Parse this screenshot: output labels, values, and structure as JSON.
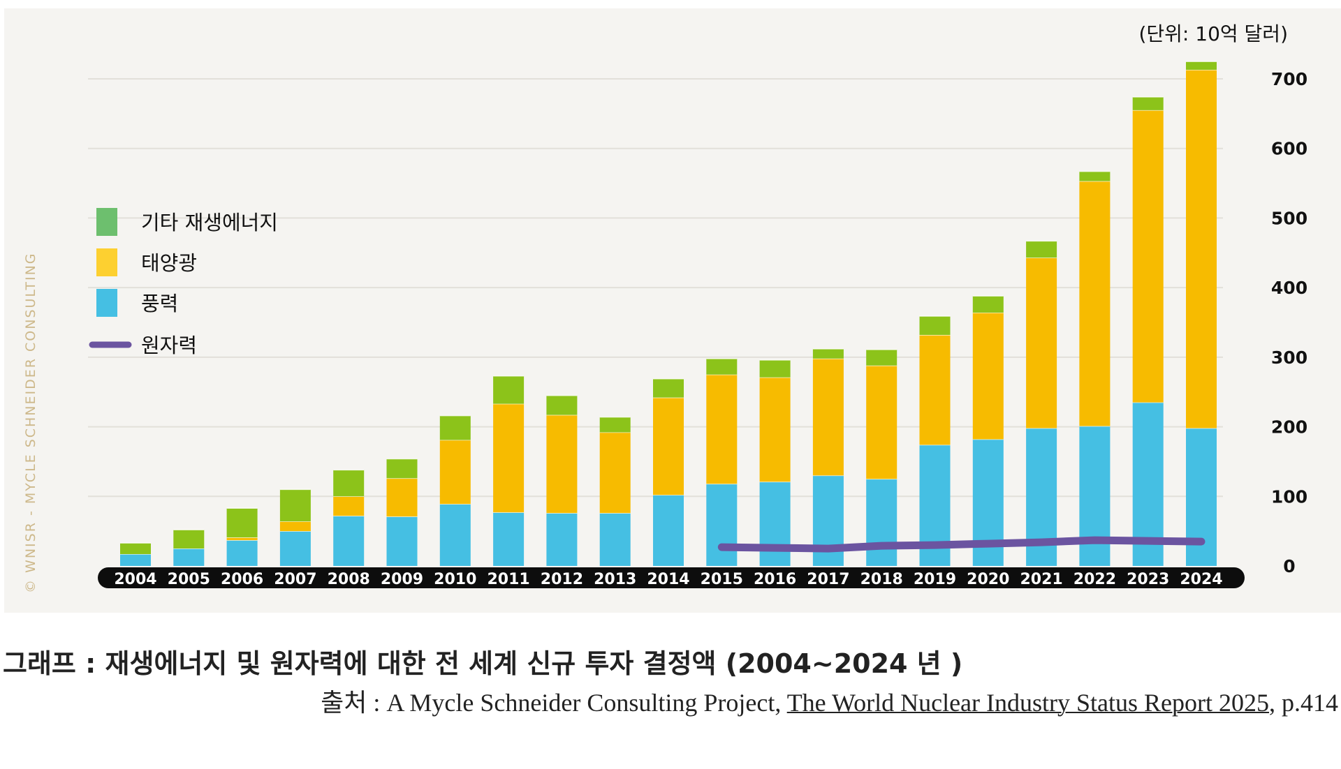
{
  "chart_data": {
    "type": "bar",
    "stacked": true,
    "unit_label": "(단위: 10억 달러)",
    "categories": [
      "2004",
      "2005",
      "2006",
      "2007",
      "2008",
      "2009",
      "2010",
      "2011",
      "2012",
      "2013",
      "2014",
      "2015",
      "2016",
      "2017",
      "2018",
      "2019",
      "2020",
      "2021",
      "2022",
      "2023",
      "2024"
    ],
    "ylim": [
      0,
      720
    ],
    "y_ticks": [
      "0",
      "100",
      "200",
      "300",
      "400",
      "500",
      "600",
      "700"
    ],
    "y_axis_side": "right",
    "series": [
      {
        "name": "풍력",
        "color": "#45bfe3",
        "values": [
          17,
          25,
          37,
          50,
          72,
          71,
          89,
          77,
          76,
          76,
          102,
          118,
          121,
          130,
          125,
          174,
          182,
          198,
          201,
          235,
          198
        ]
      },
      {
        "name": "태양광",
        "color": "#f7bb00",
        "values": [
          0,
          0,
          4,
          14,
          28,
          55,
          92,
          156,
          141,
          116,
          140,
          157,
          150,
          168,
          163,
          158,
          182,
          245,
          352,
          420,
          515
        ]
      },
      {
        "name": "기타 재생에너지",
        "color": "#8cc31a",
        "values": [
          16,
          27,
          42,
          46,
          38,
          28,
          35,
          40,
          28,
          22,
          27,
          23,
          25,
          14,
          23,
          27,
          24,
          24,
          14,
          19,
          12
        ]
      }
    ],
    "line_series": {
      "name": "원자력",
      "color": "#6b54a0",
      "x": [
        "2015",
        "2016",
        "2017",
        "2018",
        "2019",
        "2020",
        "2021",
        "2022",
        "2023",
        "2024"
      ],
      "values": [
        27,
        26,
        25,
        29,
        30,
        32,
        34,
        37,
        36,
        35
      ]
    },
    "legend": {
      "placement": "left",
      "items": [
        {
          "label": "기타 재생에너지",
          "color": "#6dbf6e",
          "shape": "square"
        },
        {
          "label": "태양광",
          "color": "#fdd030",
          "shape": "square"
        },
        {
          "label": "풍력",
          "color": "#45bfe3",
          "shape": "square"
        },
        {
          "label": "원자력",
          "color": "#6b54a0",
          "shape": "line"
        }
      ]
    },
    "grid": "horizontal",
    "watermark": "© WNISR - MYCLE SCHNEIDER CONSULTING"
  },
  "caption": {
    "title": "그래프 : 재생에너지 및 원자력에 대한 전 세계 신규 투자 결정액 (2004~2024 년 )",
    "source_prefix": "출처 : A Mycle Schneider Consulting Project, ",
    "source_title": "The World Nuclear Industry Status Report 2025",
    "source_suffix": ", p.414"
  }
}
